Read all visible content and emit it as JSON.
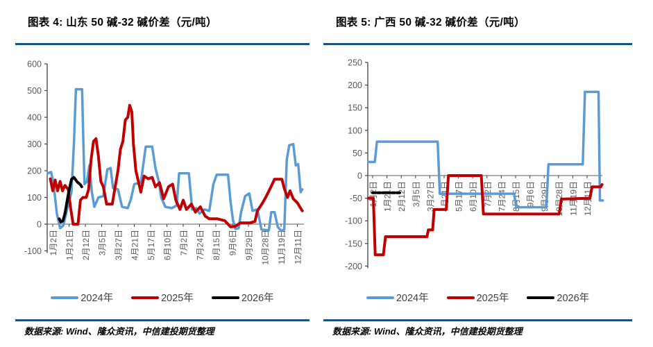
{
  "page": {
    "background": "#ffffff",
    "accent_rule_color": "#16537e",
    "axis_text_color": "#595959",
    "axis_line_color": "#404040"
  },
  "chart_data": [
    {
      "type": "line",
      "title": "图表 4: 山东 50 碱-32 碱价差（元/吨）",
      "source": "数据来源: Wind、隆众资讯，中信建投期货整理",
      "xlabel": "",
      "ylabel": "元/吨",
      "ylim": [
        -100,
        600
      ],
      "ytick_step": 100,
      "grid": false,
      "legend_position": "bottom",
      "x_label_rotation": "vertical",
      "categories": [
        "1月2日",
        "1月21日",
        "2月12日",
        "3月5日",
        "3月27日",
        "4月21日",
        "5月17日",
        "6月10日",
        "7月2日",
        "7月24日",
        "8月15日",
        "9月6日",
        "9月29日",
        "10月28日",
        "11月19日",
        "12月11日"
      ],
      "series": [
        {
          "name": "2024年",
          "color": "#5B9BD5",
          "width": 3.5,
          "dash": null,
          "points": [
            [
              -0.3,
              190
            ],
            [
              -0.1,
              195
            ],
            [
              0.05,
              150
            ],
            [
              0.25,
              40
            ],
            [
              0.45,
              -15
            ],
            [
              0.65,
              -5
            ],
            [
              0.9,
              60
            ],
            [
              1.15,
              120
            ],
            [
              1.3,
              300
            ],
            [
              1.42,
              505
            ],
            [
              1.8,
              505
            ],
            [
              1.88,
              300
            ],
            [
              1.95,
              150
            ],
            [
              2.1,
              160
            ],
            [
              2.25,
              220
            ],
            [
              2.4,
              120
            ],
            [
              2.55,
              65
            ],
            [
              2.8,
              100
            ],
            [
              3.1,
              105
            ],
            [
              3.35,
              205
            ],
            [
              3.55,
              210
            ],
            [
              3.7,
              135
            ],
            [
              4.0,
              130
            ],
            [
              4.25,
              65
            ],
            [
              4.6,
              60
            ],
            [
              4.8,
              95
            ],
            [
              5.0,
              150
            ],
            [
              5.4,
              155
            ],
            [
              5.7,
              290
            ],
            [
              6.1,
              290
            ],
            [
              6.3,
              210
            ],
            [
              6.5,
              160
            ],
            [
              6.65,
              100
            ],
            [
              6.9,
              65
            ],
            [
              7.3,
              60
            ],
            [
              7.6,
              70
            ],
            [
              7.75,
              190
            ],
            [
              8.35,
              190
            ],
            [
              8.55,
              55
            ],
            [
              8.8,
              60
            ],
            [
              9.0,
              40
            ],
            [
              9.3,
              55
            ],
            [
              9.6,
              50
            ],
            [
              9.85,
              150
            ],
            [
              10.05,
              185
            ],
            [
              10.75,
              185
            ],
            [
              10.9,
              85
            ],
            [
              11.05,
              15
            ],
            [
              11.2,
              -18
            ],
            [
              11.4,
              -15
            ],
            [
              11.55,
              45
            ],
            [
              11.8,
              105
            ],
            [
              12.05,
              115
            ],
            [
              12.25,
              50
            ],
            [
              12.55,
              55
            ],
            [
              12.8,
              -20
            ],
            [
              13.25,
              -23
            ],
            [
              13.4,
              45
            ],
            [
              13.6,
              45
            ],
            [
              13.8,
              -10
            ],
            [
              14.0,
              -25
            ],
            [
              14.2,
              -20
            ],
            [
              14.35,
              240
            ],
            [
              14.5,
              295
            ],
            [
              14.75,
              300
            ],
            [
              14.9,
              220
            ],
            [
              15.05,
              225
            ],
            [
              15.2,
              120
            ],
            [
              15.3,
              130
            ]
          ]
        },
        {
          "name": "2025年",
          "color": "#C00000",
          "width": 4,
          "dash": null,
          "points": [
            [
              -0.15,
              170
            ],
            [
              0.0,
              125
            ],
            [
              0.15,
              165
            ],
            [
              0.3,
              125
            ],
            [
              0.45,
              160
            ],
            [
              0.6,
              125
            ],
            [
              0.75,
              145
            ],
            [
              0.95,
              130
            ],
            [
              1.1,
              60
            ],
            [
              1.25,
              0
            ],
            [
              1.55,
              0
            ],
            [
              1.7,
              90
            ],
            [
              1.85,
              100
            ],
            [
              2.05,
              100
            ],
            [
              2.2,
              130
            ],
            [
              2.35,
              240
            ],
            [
              2.5,
              310
            ],
            [
              2.65,
              320
            ],
            [
              2.8,
              255
            ],
            [
              2.95,
              160
            ],
            [
              3.1,
              140
            ],
            [
              3.3,
              75
            ],
            [
              3.65,
              75
            ],
            [
              3.8,
              130
            ],
            [
              4.0,
              200
            ],
            [
              4.15,
              280
            ],
            [
              4.3,
              310
            ],
            [
              4.45,
              390
            ],
            [
              4.6,
              400
            ],
            [
              4.72,
              445
            ],
            [
              4.85,
              420
            ],
            [
              4.95,
              300
            ],
            [
              5.1,
              200
            ],
            [
              5.25,
              160
            ],
            [
              5.4,
              120
            ],
            [
              5.6,
              180
            ],
            [
              5.85,
              170
            ],
            [
              6.1,
              175
            ],
            [
              6.3,
              140
            ],
            [
              6.55,
              155
            ],
            [
              6.8,
              95
            ],
            [
              7.1,
              140
            ],
            [
              7.35,
              150
            ],
            [
              7.55,
              90
            ],
            [
              7.8,
              55
            ],
            [
              8.0,
              90
            ],
            [
              8.2,
              55
            ],
            [
              8.5,
              75
            ],
            [
              8.75,
              45
            ],
            [
              9.05,
              65
            ],
            [
              9.35,
              30
            ],
            [
              9.6,
              20
            ],
            [
              10.1,
              20
            ],
            [
              10.55,
              13
            ],
            [
              10.9,
              -10
            ],
            [
              11.2,
              -8
            ],
            [
              11.5,
              5
            ],
            [
              12.1,
              5
            ],
            [
              12.4,
              10
            ],
            [
              12.55,
              50
            ],
            [
              12.85,
              78
            ],
            [
              13.1,
              105
            ],
            [
              13.4,
              142
            ],
            [
              13.6,
              168
            ],
            [
              14.05,
              168
            ],
            [
              14.2,
              133
            ],
            [
              14.4,
              100
            ],
            [
              14.55,
              125
            ],
            [
              14.75,
              95
            ],
            [
              15.0,
              80
            ],
            [
              15.15,
              65
            ],
            [
              15.3,
              50
            ]
          ]
        },
        {
          "name": "2026年",
          "color": "#000000",
          "width": 4,
          "dash": null,
          "points": [
            [
              0.4,
              20
            ],
            [
              0.5,
              8
            ],
            [
              0.62,
              12
            ],
            [
              0.75,
              40
            ],
            [
              0.95,
              110
            ],
            [
              1.15,
              168
            ],
            [
              1.3,
              175
            ],
            [
              1.5,
              158
            ],
            [
              1.7,
              148
            ],
            [
              1.78,
              140
            ]
          ]
        }
      ]
    },
    {
      "type": "line",
      "title": "图表 5: 广西 50 碱-32 碱价差（元/吨）",
      "source": "数据来源: Wind、隆众资讯，中信建投期货整理",
      "xlabel": "",
      "ylabel": "元/吨",
      "ylim": [
        -200,
        250
      ],
      "ytick_step": 50,
      "grid": false,
      "legend_position": "bottom",
      "x_label_rotation": "vertical",
      "categories": [
        "1月2日",
        "1月21日",
        "2月12日",
        "3月5日",
        "3月27日",
        "4月21日",
        "5月17日",
        "6月10日",
        "7月2日",
        "7月24日",
        "8月15日",
        "9月6日",
        "9月29日",
        "10月28日",
        "11月19日",
        "12月11日"
      ],
      "series": [
        {
          "name": "2024年",
          "color": "#5B9BD5",
          "width": 3.5,
          "dash": null,
          "points": [
            [
              -0.3,
              30
            ],
            [
              0.15,
              30
            ],
            [
              0.3,
              75
            ],
            [
              4.55,
              75
            ],
            [
              4.7,
              -40
            ],
            [
              9.9,
              -40
            ],
            [
              10.05,
              -70
            ],
            [
              12.15,
              -70
            ],
            [
              12.3,
              25
            ],
            [
              14.7,
              25
            ],
            [
              14.85,
              185
            ],
            [
              15.8,
              185
            ],
            [
              15.9,
              -55
            ],
            [
              16.1,
              -55
            ]
          ]
        },
        {
          "name": "2025年",
          "color": "#C00000",
          "width": 4,
          "dash": null,
          "points": [
            [
              -0.3,
              -50
            ],
            [
              0.05,
              -50
            ],
            [
              0.18,
              -175
            ],
            [
              0.75,
              -175
            ],
            [
              0.9,
              -135
            ],
            [
              3.8,
              -135
            ],
            [
              3.9,
              -120
            ],
            [
              4.2,
              -120
            ],
            [
              4.3,
              -75
            ],
            [
              5.15,
              -75
            ],
            [
              5.3,
              0
            ],
            [
              7.6,
              0
            ],
            [
              7.75,
              -85
            ],
            [
              13.05,
              -85
            ],
            [
              13.2,
              -52
            ],
            [
              15.2,
              -50
            ],
            [
              15.35,
              -25
            ],
            [
              15.95,
              -25
            ],
            [
              16.05,
              -20
            ]
          ]
        },
        {
          "name": "2026年",
          "color": "#000000",
          "width": 4,
          "dash": "4 3",
          "points": [
            [
              0.0,
              -38
            ],
            [
              1.95,
              -38
            ]
          ]
        }
      ]
    }
  ]
}
